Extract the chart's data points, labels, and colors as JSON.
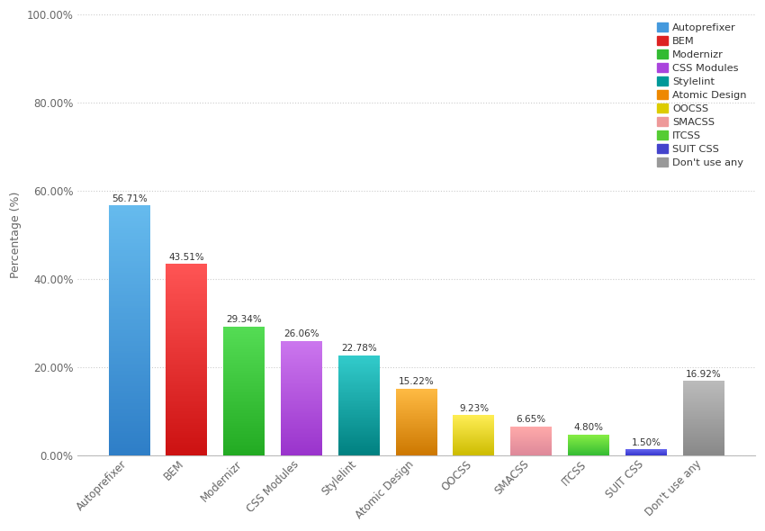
{
  "categories": [
    "Autoprefixer",
    "BEM",
    "Modernizr",
    "CSS Modules",
    "Stylelint",
    "Atomic Design",
    "OOCSS",
    "SMACSS",
    "ITCSS",
    "SUIT CSS",
    "Don't use any"
  ],
  "values": [
    56.71,
    43.51,
    29.34,
    26.06,
    22.78,
    15.22,
    9.23,
    6.65,
    4.8,
    1.5,
    16.92
  ],
  "colors_bottom": [
    "#2E7EC7",
    "#CC1111",
    "#22AA22",
    "#9933CC",
    "#008080",
    "#CC7700",
    "#CCBB00",
    "#DD8899",
    "#33BB33",
    "#3333CC",
    "#888888"
  ],
  "colors_top": [
    "#66BBEE",
    "#FF5555",
    "#55DD55",
    "#CC77EE",
    "#33CCCC",
    "#FFBB44",
    "#FFEE55",
    "#FFAAAA",
    "#88EE44",
    "#6666EE",
    "#BBBBBB"
  ],
  "ylabel": "Percentage (%)",
  "ylim": [
    0,
    100
  ],
  "yticks": [
    0,
    20,
    40,
    60,
    80,
    100
  ],
  "ytick_labels": [
    "0.00%",
    "20.00%",
    "40.00%",
    "60.00%",
    "80.00%",
    "100.00%"
  ],
  "legend_labels": [
    "Autoprefixer",
    "BEM",
    "Modernizr",
    "CSS Modules",
    "Stylelint",
    "Atomic Design",
    "OOCSS",
    "SMACSS",
    "ITCSS",
    "SUIT CSS",
    "Don't use any"
  ],
  "legend_colors": [
    "#4499DD",
    "#DD2222",
    "#33BB33",
    "#AA44DD",
    "#009999",
    "#EE8800",
    "#DDCC00",
    "#EE9999",
    "#55CC33",
    "#4444CC",
    "#999999"
  ],
  "background_color": "#FFFFFF",
  "grid_color": "#CCCCCC",
  "bar_width": 0.72,
  "label_fontsize": 7.5,
  "axis_fontsize": 8.5,
  "ylabel_fontsize": 9
}
